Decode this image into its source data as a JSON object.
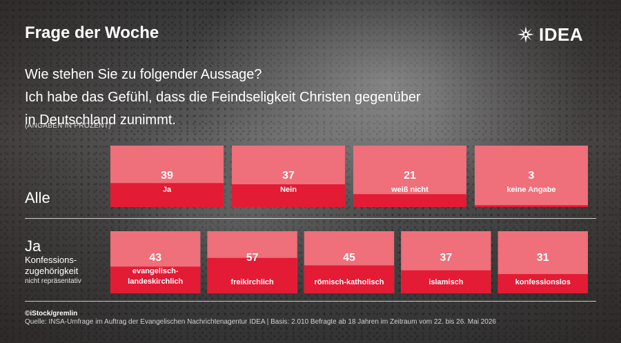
{
  "header": {
    "title": "Frage der Woche",
    "logo_text": "IDEA"
  },
  "question": {
    "lines": [
      "Wie stehen Sie zu folgender Aussage?",
      "Ich habe das Gefühl, dass die Feindseligkeit Christen gegenüber",
      "in Deutschland zunimmt."
    ],
    "unit_note": "(ANGABEN IN PROZENT)"
  },
  "rows": {
    "alle_label": "Alle",
    "ja_label": "Ja",
    "ja_sub_line1": "Konfessions-",
    "ja_sub_line2": "zugehörigkeit",
    "ja_note": "nicht repräsentativ"
  },
  "colors": {
    "box_light": "#ef6f7a",
    "fill_red": "#e31b35"
  },
  "chart_data": [
    {
      "type": "bar",
      "categories": [
        "Ja",
        "Nein",
        "weiß nicht",
        "keine Angabe"
      ],
      "values": [
        39,
        37,
        21,
        3
      ],
      "ylim": [
        0,
        100
      ]
    },
    {
      "type": "bar",
      "categories": [
        "evangelisch-\nlandeskirchlich",
        "freikirchlich",
        "römisch-katholisch",
        "islamisch",
        "konfessionslos"
      ],
      "values": [
        43,
        57,
        45,
        37,
        31
      ],
      "ylim": [
        0,
        100
      ]
    }
  ],
  "footer": {
    "credit": "©iStock/gremlin",
    "source": "Quelle: INSA-Umfrage im Auftrag der Evangelischen Nachrichtenagentur IDEA | Basis: 2.010 Befragte ab 18 Jahren im Zeitraum vom 22. bis 26. Mai 2026"
  }
}
